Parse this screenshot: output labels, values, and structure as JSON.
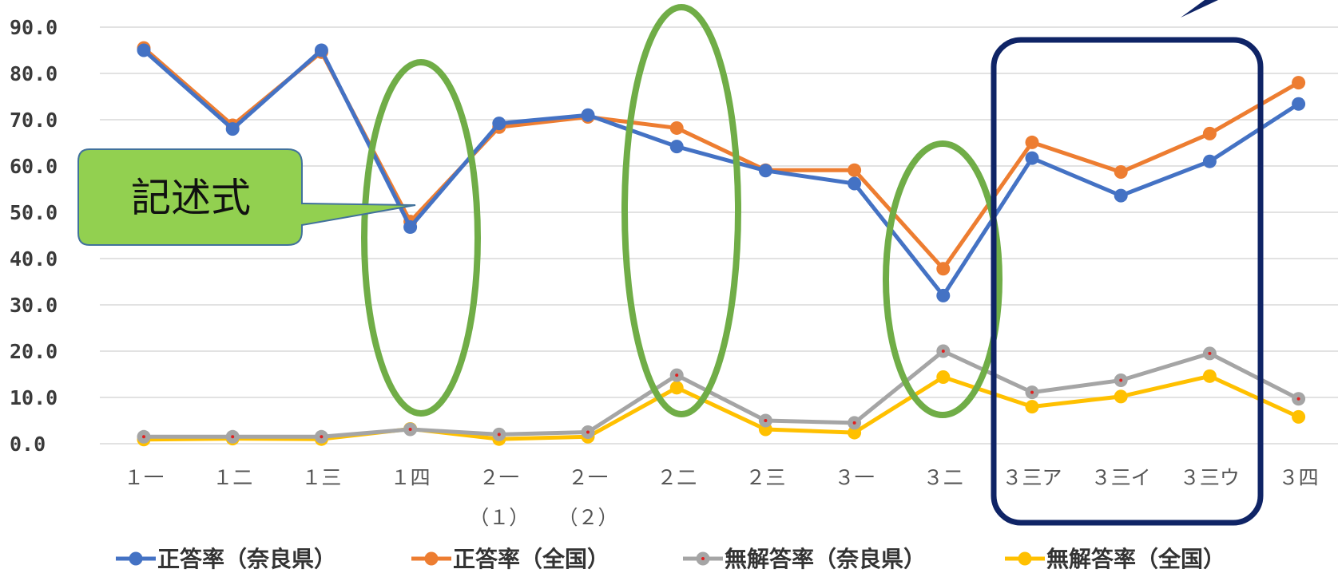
{
  "chart_data": {
    "type": "line",
    "categories": [
      "１一",
      "１二",
      "１三",
      "１四",
      "２一\n（１）",
      "２一\n（２）",
      "２二",
      "２三",
      "３一",
      "３二",
      "３三ア",
      "３三イ",
      "３三ウ",
      "３四"
    ],
    "ylim": [
      0,
      90
    ],
    "yticks": [
      "0.0",
      "10.0",
      "20.0",
      "30.0",
      "40.0",
      "50.0",
      "60.0",
      "70.0",
      "80.0",
      "90.0"
    ],
    "grid": true,
    "legend_position": "bottom",
    "series": [
      {
        "name": "正答率（奈良県）",
        "color": "#4472C4",
        "values": [
          85.0,
          68.0,
          85.0,
          46.8,
          69.2,
          71.0,
          64.2,
          59.0,
          56.2,
          32.0,
          61.7,
          53.6,
          61.0,
          73.4
        ]
      },
      {
        "name": "正答率（全国）",
        "color": "#ED7D31",
        "values": [
          85.5,
          68.8,
          84.6,
          48.0,
          68.4,
          70.6,
          68.2,
          59.1,
          59.1,
          37.8,
          65.1,
          58.7,
          67.0,
          78.0
        ]
      },
      {
        "name": "無解答率（奈良県）",
        "color": "#A5A5A5",
        "values": [
          1.5,
          1.5,
          1.5,
          3.1,
          2.0,
          2.5,
          14.8,
          5.0,
          4.5,
          20.0,
          11.1,
          13.7,
          19.5,
          9.7
        ]
      },
      {
        "name": "無解答率（全国）",
        "color": "#FFC000",
        "values": [
          0.9,
          1.1,
          1.0,
          3.2,
          1.0,
          1.5,
          12.1,
          3.1,
          2.4,
          14.4,
          8.0,
          10.2,
          14.6,
          5.8
        ]
      }
    ]
  },
  "annotations": {
    "callout_label": "記述式",
    "highlight_color": "#70AD47",
    "box_color": "#0F2466",
    "callout_fill": "#92D050"
  }
}
